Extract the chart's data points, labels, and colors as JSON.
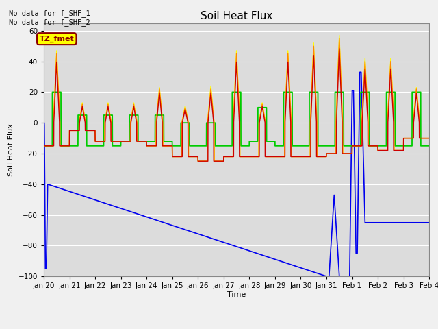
{
  "title": "Soil Heat Flux",
  "ylabel": "Soil Heat Flux",
  "xlabel": "Time",
  "annotation_text": "No data for f_SHF_1\nNo data for f_SHF_2",
  "tz_label": "TZ_fmet",
  "ylim": [
    -100,
    65
  ],
  "yticks": [
    -100,
    -80,
    -60,
    -40,
    -20,
    0,
    20,
    40,
    60
  ],
  "xlim_start": 20,
  "xlim_end": 35,
  "xtick_labels": [
    "Jan 20",
    "Jan 21",
    "Jan 22",
    "Jan 23",
    "Jan 24",
    "Jan 25",
    "Jan 26",
    "Jan 27",
    "Jan 28",
    "Jan 29",
    "Jan 30",
    "Jan 31",
    "Feb 1",
    "Feb 2",
    "Feb 3",
    "Feb 4"
  ],
  "xtick_positions": [
    20,
    21,
    22,
    23,
    24,
    25,
    26,
    27,
    28,
    29,
    30,
    31,
    32,
    33,
    34,
    35
  ],
  "colors": {
    "SHF1": "#cc0000",
    "SHF2": "#ff8800",
    "SHF3": "#ffff00",
    "SHF4": "#00cc00",
    "SHF5": "#0000ee"
  },
  "background_color": "#dcdcdc",
  "grid_color": "#ffffff",
  "title_fontsize": 11,
  "axis_fontsize": 8,
  "tick_fontsize": 7.5
}
